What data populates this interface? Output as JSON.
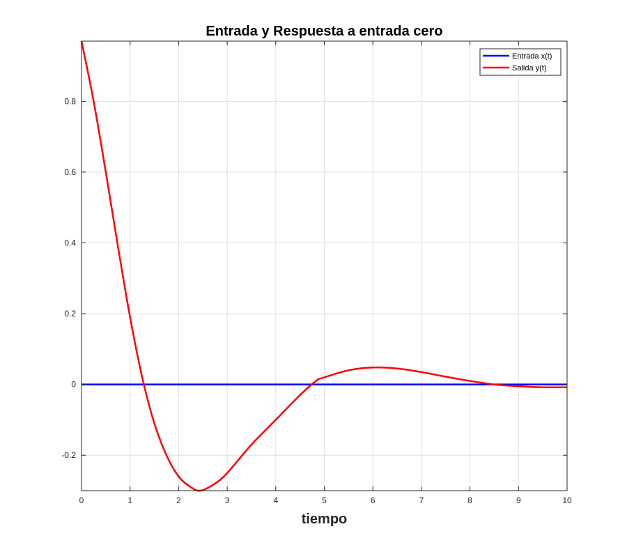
{
  "chart_data": {
    "type": "line",
    "title": "Entrada y Respuesta a entrada cero",
    "xlabel": "tiempo",
    "ylabel": "",
    "xlim": [
      0,
      10
    ],
    "ylim": [
      -0.3,
      0.97
    ],
    "xticks": [
      0,
      1,
      2,
      3,
      4,
      5,
      6,
      7,
      8,
      9,
      10
    ],
    "yticks": [
      -0.2,
      0,
      0.2,
      0.4,
      0.6,
      0.8
    ],
    "xtick_labels": [
      "0",
      "1",
      "2",
      "3",
      "4",
      "5",
      "6",
      "7",
      "8",
      "9",
      "10"
    ],
    "ytick_labels": [
      "-0.2",
      "0",
      "0.2",
      "0.4",
      "0.6",
      "0.8"
    ],
    "grid": true,
    "legend_position": "top-right",
    "series": [
      {
        "name": "Entrada x(t)",
        "color": "#0000ff",
        "x": [
          0,
          10
        ],
        "y": [
          0,
          0
        ]
      },
      {
        "name": "Salida y(t)",
        "color": "#ff0000",
        "x": [
          0,
          0.25,
          0.5,
          0.75,
          1.0,
          1.25,
          1.5,
          1.75,
          2.0,
          2.25,
          2.45,
          2.75,
          3.0,
          3.5,
          4.0,
          4.5,
          4.83,
          5.0,
          5.5,
          6.0,
          6.5,
          7.0,
          7.5,
          8.0,
          8.5,
          9.0,
          9.5,
          10.0
        ],
        "y": [
          0.97,
          0.8,
          0.6,
          0.39,
          0.19,
          0.02,
          -0.11,
          -0.2,
          -0.26,
          -0.29,
          -0.3,
          -0.28,
          -0.25,
          -0.17,
          -0.1,
          -0.03,
          0.01,
          0.02,
          0.04,
          0.048,
          0.045,
          0.035,
          0.022,
          0.01,
          0.0,
          -0.005,
          -0.008,
          -0.008
        ]
      }
    ]
  }
}
